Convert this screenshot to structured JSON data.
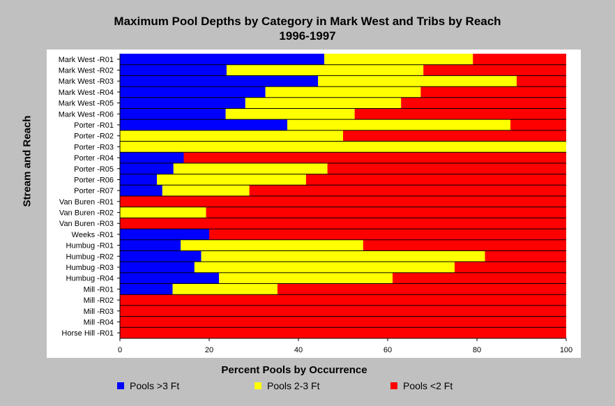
{
  "chart_data": {
    "type": "bar",
    "orientation": "horizontal",
    "stacked": true,
    "title": "Maximum Pool Depths by Category in Mark West and Tribs by Reach",
    "subtitle": "1996-1997",
    "xlabel": "Percent Pools by Occurrence",
    "ylabel": "Stream and Reach",
    "xlim": [
      0,
      100
    ],
    "xticks": [
      0,
      20,
      40,
      60,
      80,
      100
    ],
    "grid": false,
    "legend_position": "bottom",
    "categories": [
      "Mark West -R01",
      "Mark West -R02",
      "Mark West -R03",
      "Mark West -R04",
      "Mark West -R05",
      "Mark West -R06",
      "Porter -R01",
      "Porter -R02",
      "Porter -R03",
      "Porter -R04",
      "Porter -R05",
      "Porter -R06",
      "Porter -R07",
      "Van Buren -R01",
      "Van Buren -R02",
      "Van Buren -R03",
      "Weeks -R01",
      "Humbug -R01",
      "Humbug -R02",
      "Humbug -R03",
      "Humbug -R04",
      "Mill -R01",
      "Mill -R02",
      "Mill -R03",
      "Mill -R04",
      "Horse Hill -R01"
    ],
    "series": [
      {
        "name": "Pools >3 Ft",
        "color": "#0000ff",
        "values": [
          45.8,
          23.9,
          44.4,
          32.6,
          28.1,
          23.7,
          37.5,
          0,
          0,
          14.3,
          12.0,
          8.3,
          9.5,
          0,
          0,
          0,
          20.0,
          13.6,
          18.2,
          16.7,
          22.2,
          11.8,
          0,
          0,
          0,
          0
        ]
      },
      {
        "name": "Pools 2-3 Ft",
        "color": "#ffff00",
        "values": [
          33.3,
          44.1,
          44.5,
          34.8,
          34.9,
          28.9,
          50.0,
          50.0,
          100,
          0,
          34.5,
          33.4,
          19.5,
          0,
          19.3,
          0,
          0,
          40.9,
          63.6,
          58.3,
          38.9,
          23.5,
          0,
          0,
          0,
          0
        ]
      },
      {
        "name": "Pools <2 Ft",
        "color": "#ff0000",
        "values": [
          20.9,
          32.0,
          11.1,
          32.6,
          37.0,
          47.4,
          12.5,
          50.0,
          0,
          85.7,
          53.5,
          58.3,
          71.0,
          100,
          80.7,
          100,
          80.0,
          45.5,
          18.2,
          25.0,
          38.9,
          64.7,
          100,
          100,
          100,
          100
        ]
      }
    ]
  }
}
